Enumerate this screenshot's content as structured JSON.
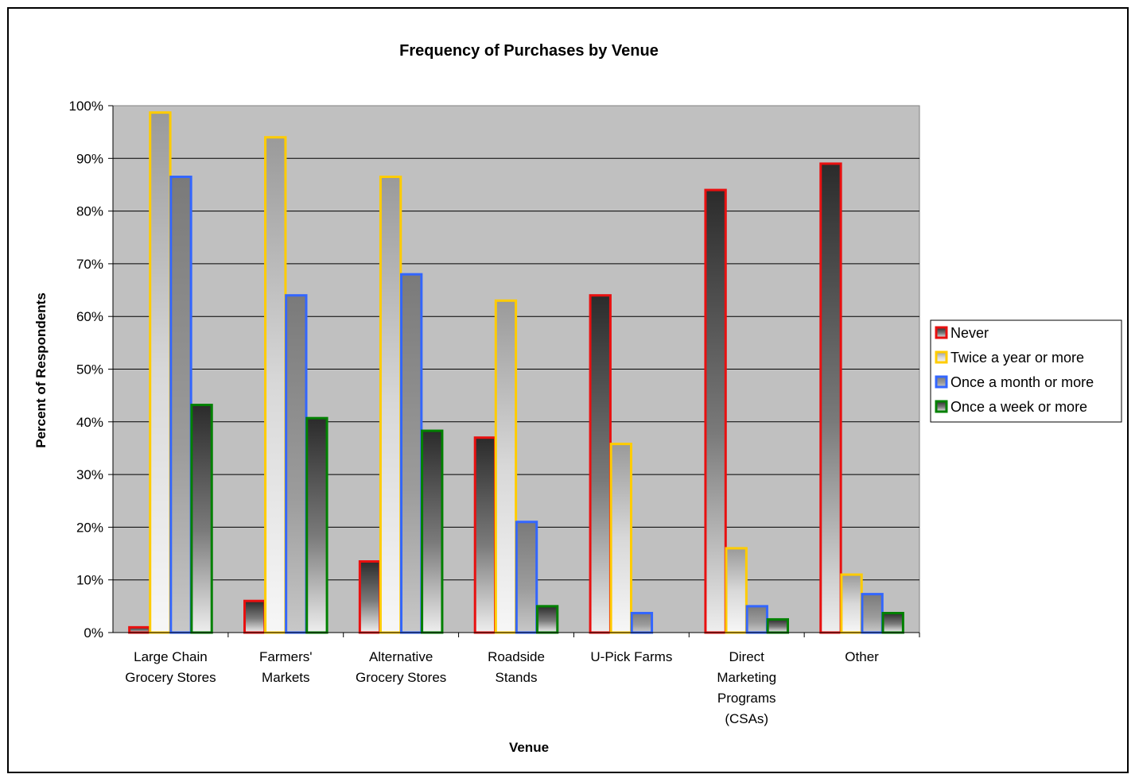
{
  "chart_data": {
    "type": "bar",
    "title": "Frequency of Purchases by Venue",
    "xlabel": "Venue",
    "ylabel": "Percent of Respondents",
    "ylim": [
      0,
      100
    ],
    "yticks": [
      "0%",
      "10%",
      "20%",
      "30%",
      "40%",
      "50%",
      "60%",
      "70%",
      "80%",
      "90%",
      "100%"
    ],
    "grid": true,
    "legend_position": "right",
    "categories": [
      [
        "Large Chain",
        "Grocery Stores"
      ],
      [
        "Farmers'",
        "Markets"
      ],
      [
        "Alternative",
        "Grocery Stores"
      ],
      [
        "Roadside",
        "Stands"
      ],
      [
        "U-Pick Farms"
      ],
      [
        "Direct",
        "Marketing",
        "Programs",
        "(CSAs)"
      ],
      [
        "Other"
      ]
    ],
    "series": [
      {
        "name": "Never",
        "color": "#e81010",
        "style": "dark",
        "values": [
          1,
          6,
          13.5,
          37,
          64,
          84,
          89
        ]
      },
      {
        "name": "Twice a year or more",
        "color": "#ffcc00",
        "style": "light",
        "values": [
          98.7,
          94,
          86.5,
          63,
          35.8,
          16,
          11
        ]
      },
      {
        "name": "Once a month or more",
        "color": "#3366ff",
        "style": "mid",
        "values": [
          86.5,
          64,
          68,
          21,
          3.7,
          5,
          7.3
        ]
      },
      {
        "name": "Once a week or more",
        "color": "#008000",
        "style": "dark",
        "values": [
          43.2,
          40.7,
          38.3,
          5,
          0,
          2.5,
          3.7
        ]
      }
    ]
  }
}
